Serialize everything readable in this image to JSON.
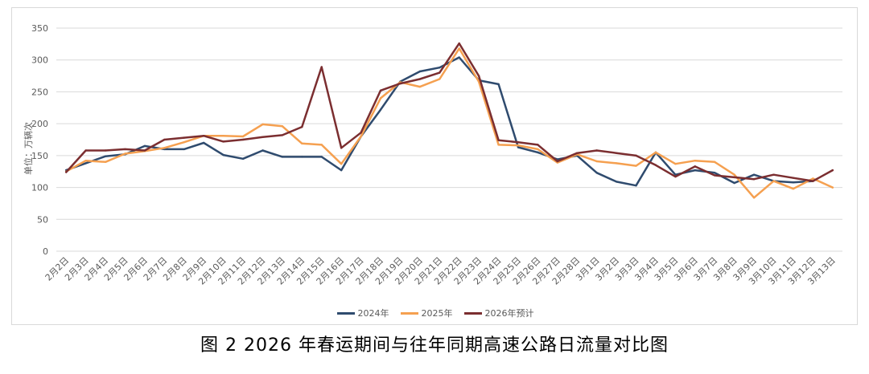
{
  "chart_data": {
    "type": "line",
    "ylabel": "单位：万辆次",
    "ylim": [
      0,
      350
    ],
    "yticks": [
      0,
      50,
      100,
      150,
      200,
      250,
      300,
      350
    ],
    "grid": true,
    "legend_position": "bottom",
    "categories": [
      "2月2日",
      "2月3日",
      "2月4日",
      "2月5日",
      "2月6日",
      "2月7日",
      "2月8日",
      "2月9日",
      "2月10日",
      "2月11日",
      "2月12日",
      "2月13日",
      "2月14日",
      "2月15日",
      "2月16日",
      "2月17日",
      "2月18日",
      "2月19日",
      "2月20日",
      "2月21日",
      "2月22日",
      "2月23日",
      "2月24日",
      "2月25日",
      "2月26日",
      "2月27日",
      "2月28日",
      "3月1日",
      "3月2日",
      "3月3日",
      "3月4日",
      "3月5日",
      "3月6日",
      "3月7日",
      "3月8日",
      "3月9日",
      "3月10日",
      "3月11日",
      "3月12日",
      "3月13日"
    ],
    "series": [
      {
        "name": "2024年",
        "color": "#2f4b6e",
        "values": [
          127,
          138,
          149,
          152,
          165,
          160,
          160,
          170,
          151,
          145,
          158,
          148,
          148,
          148,
          127,
          180,
          222,
          266,
          282,
          288,
          304,
          268,
          262,
          163,
          155,
          144,
          150,
          123,
          109,
          103,
          155,
          120,
          127,
          123,
          107,
          120,
          110,
          108,
          110,
          null
        ]
      },
      {
        "name": "2025年",
        "color": "#f5a050",
        "values": [
          125,
          142,
          140,
          153,
          157,
          162,
          171,
          181,
          181,
          180,
          199,
          196,
          169,
          167,
          137,
          180,
          240,
          265,
          258,
          270,
          318,
          266,
          167,
          166,
          160,
          139,
          152,
          141,
          138,
          134,
          155,
          137,
          142,
          140,
          120,
          84,
          110,
          98,
          114,
          100
        ]
      },
      {
        "name": "2026年预计",
        "color": "#7b2e30",
        "values": [
          124,
          158,
          158,
          160,
          158,
          175,
          178,
          181,
          172,
          175,
          179,
          182,
          195,
          289,
          162,
          186,
          252,
          263,
          270,
          280,
          326,
          275,
          174,
          171,
          167,
          141,
          154,
          158,
          154,
          150,
          135,
          117,
          133,
          119,
          116,
          113,
          120,
          115,
          110,
          127
        ]
      }
    ]
  },
  "figure_caption": "图 2    2026 年春运期间与往年同期高速公路日流量对比图"
}
